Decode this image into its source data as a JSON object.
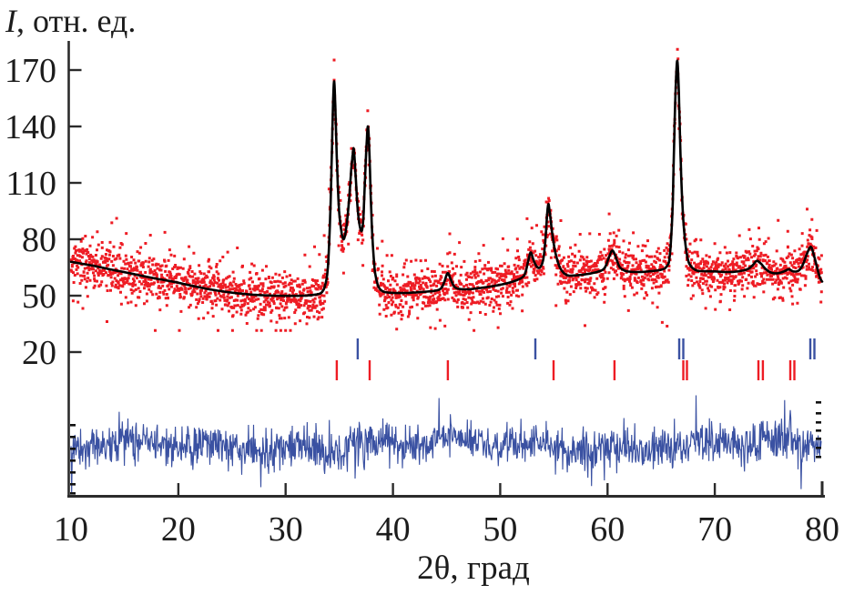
{
  "chart_data": {
    "type": "scatter+line (X-ray diffraction Rietveld refinement plot)",
    "title": "",
    "ylabel_italic": "I",
    "ylabel_rest": ", отн. ед.",
    "ylabel_full": "I, отн. ед.",
    "xlabel": "2θ, град",
    "x_range": [
      10,
      80
    ],
    "x_ticks": [
      10,
      20,
      30,
      40,
      50,
      60,
      70,
      80
    ],
    "y_ticks": [
      20,
      50,
      80,
      110,
      140,
      170
    ],
    "grid": false,
    "legend": "none",
    "axis_color": "#2b2b2b",
    "text_color": "#1c1c1c",
    "series": [
      {
        "name": "observed-intensity",
        "style": "scatter",
        "color": "#ee1c24",
        "marker": "square",
        "marker_px": 3,
        "noise_sigma": 6,
        "follows": "calculated-intensity"
      },
      {
        "name": "calculated-intensity",
        "style": "line",
        "color": "#000000",
        "points": [
          [
            10,
            68
          ],
          [
            11,
            67
          ],
          [
            12,
            66
          ],
          [
            13,
            64.8
          ],
          [
            14,
            63.6
          ],
          [
            15,
            62.5
          ],
          [
            16,
            61.3
          ],
          [
            17,
            60.1
          ],
          [
            18,
            59
          ],
          [
            19,
            58
          ],
          [
            20,
            56.9
          ],
          [
            21,
            55.6
          ],
          [
            22,
            54.4
          ],
          [
            23,
            53.3
          ],
          [
            24,
            52.4
          ],
          [
            25,
            51.6
          ],
          [
            26,
            51
          ],
          [
            27,
            50.5
          ],
          [
            28,
            50.2
          ],
          [
            29,
            50
          ],
          [
            30,
            49.9
          ],
          [
            31,
            49.9
          ],
          [
            32,
            50.1
          ],
          [
            33,
            50.8
          ],
          [
            33.4,
            52
          ],
          [
            33.7,
            56
          ],
          [
            33.95,
            66
          ],
          [
            34.15,
            92
          ],
          [
            34.3,
            124
          ],
          [
            34.42,
            152
          ],
          [
            34.52,
            164
          ],
          [
            34.63,
            151
          ],
          [
            34.78,
            122
          ],
          [
            34.95,
            98
          ],
          [
            35.15,
            86
          ],
          [
            35.4,
            80
          ],
          [
            35.65,
            86
          ],
          [
            35.9,
            100
          ],
          [
            36.1,
            116
          ],
          [
            36.25,
            125
          ],
          [
            36.35,
            128
          ],
          [
            36.5,
            116
          ],
          [
            36.7,
            97
          ],
          [
            36.9,
            87.5
          ],
          [
            37.1,
            84.5
          ],
          [
            37.25,
            92
          ],
          [
            37.4,
            112
          ],
          [
            37.55,
            131
          ],
          [
            37.68,
            140
          ],
          [
            37.82,
            124
          ],
          [
            37.95,
            100
          ],
          [
            38.1,
            80
          ],
          [
            38.3,
            64
          ],
          [
            38.55,
            56.5
          ],
          [
            38.8,
            53.5
          ],
          [
            39.2,
            52
          ],
          [
            40,
            51.5
          ],
          [
            41,
            51.4
          ],
          [
            42,
            51.7
          ],
          [
            43,
            52.1
          ],
          [
            44,
            52.7
          ],
          [
            44.5,
            54
          ],
          [
            44.8,
            57.5
          ],
          [
            45.1,
            62
          ],
          [
            45.4,
            58.5
          ],
          [
            45.7,
            55
          ],
          [
            46.1,
            53.7
          ],
          [
            47,
            53.4
          ],
          [
            48,
            54
          ],
          [
            49,
            54.8
          ],
          [
            50,
            55.8
          ],
          [
            51,
            57.2
          ],
          [
            52,
            59.5
          ],
          [
            52.35,
            62.5
          ],
          [
            52.65,
            69.5
          ],
          [
            52.85,
            73
          ],
          [
            53.1,
            69
          ],
          [
            53.4,
            65.5
          ],
          [
            53.7,
            65
          ],
          [
            54,
            69
          ],
          [
            54.2,
            79
          ],
          [
            54.45,
            98
          ],
          [
            54.62,
            94
          ],
          [
            54.85,
            83
          ],
          [
            55.1,
            74
          ],
          [
            55.45,
            66.5
          ],
          [
            55.85,
            62.5
          ],
          [
            56.3,
            60.8
          ],
          [
            57,
            60.8
          ],
          [
            58,
            61.4
          ],
          [
            59,
            62.6
          ],
          [
            59.7,
            64.5
          ],
          [
            60.1,
            70
          ],
          [
            60.45,
            74
          ],
          [
            60.8,
            70
          ],
          [
            61.1,
            65.5
          ],
          [
            61.5,
            63.6
          ],
          [
            62,
            62.8
          ],
          [
            63,
            62.6
          ],
          [
            64,
            63
          ],
          [
            65,
            63.8
          ],
          [
            65.5,
            65.5
          ],
          [
            65.8,
            71
          ],
          [
            66.05,
            95
          ],
          [
            66.2,
            130
          ],
          [
            66.35,
            160
          ],
          [
            66.5,
            175
          ],
          [
            66.65,
            157
          ],
          [
            66.8,
            125
          ],
          [
            67,
            96
          ],
          [
            67.25,
            78
          ],
          [
            67.5,
            69
          ],
          [
            67.8,
            65.5
          ],
          [
            68.3,
            63.4
          ],
          [
            69,
            63
          ],
          [
            70,
            62.9
          ],
          [
            71,
            62.6
          ],
          [
            72,
            62.8
          ],
          [
            73,
            64
          ],
          [
            73.5,
            66
          ],
          [
            73.9,
            68.5
          ],
          [
            74.3,
            67
          ],
          [
            74.7,
            64.4
          ],
          [
            75.2,
            62.4
          ],
          [
            75.8,
            61.9
          ],
          [
            76.4,
            62.8
          ],
          [
            76.9,
            64
          ],
          [
            77.3,
            62.9
          ],
          [
            77.8,
            63.3
          ],
          [
            78.2,
            66.5
          ],
          [
            78.6,
            72.5
          ],
          [
            78.95,
            76
          ],
          [
            79.25,
            71
          ],
          [
            79.55,
            64.5
          ],
          [
            79.8,
            59.5
          ],
          [
            80,
            57.5
          ]
        ]
      },
      {
        "name": "difference-curve",
        "style": "line",
        "color": "#3a51a2",
        "center_level": -30,
        "noise_sigma": 5.3,
        "end_caps_color": "#111111"
      }
    ],
    "peaks_2theta": [
      34.5,
      36.35,
      37.7,
      45.1,
      52.85,
      54.45,
      60.45,
      66.5,
      73.9,
      78.95
    ],
    "bragg_markers": {
      "rows": [
        {
          "name": "phase-1-reflections",
          "color": "#3a51a2",
          "positions": [
            36.72,
            53.27,
            66.68,
            67.06,
            78.9,
            79.28
          ]
        },
        {
          "name": "phase-2-reflections",
          "color": "#ee1c24",
          "positions": [
            34.77,
            37.83,
            45.12,
            54.97,
            60.65,
            67.06,
            67.4,
            74.06,
            74.48,
            77.03,
            77.41
          ]
        }
      ]
    }
  }
}
